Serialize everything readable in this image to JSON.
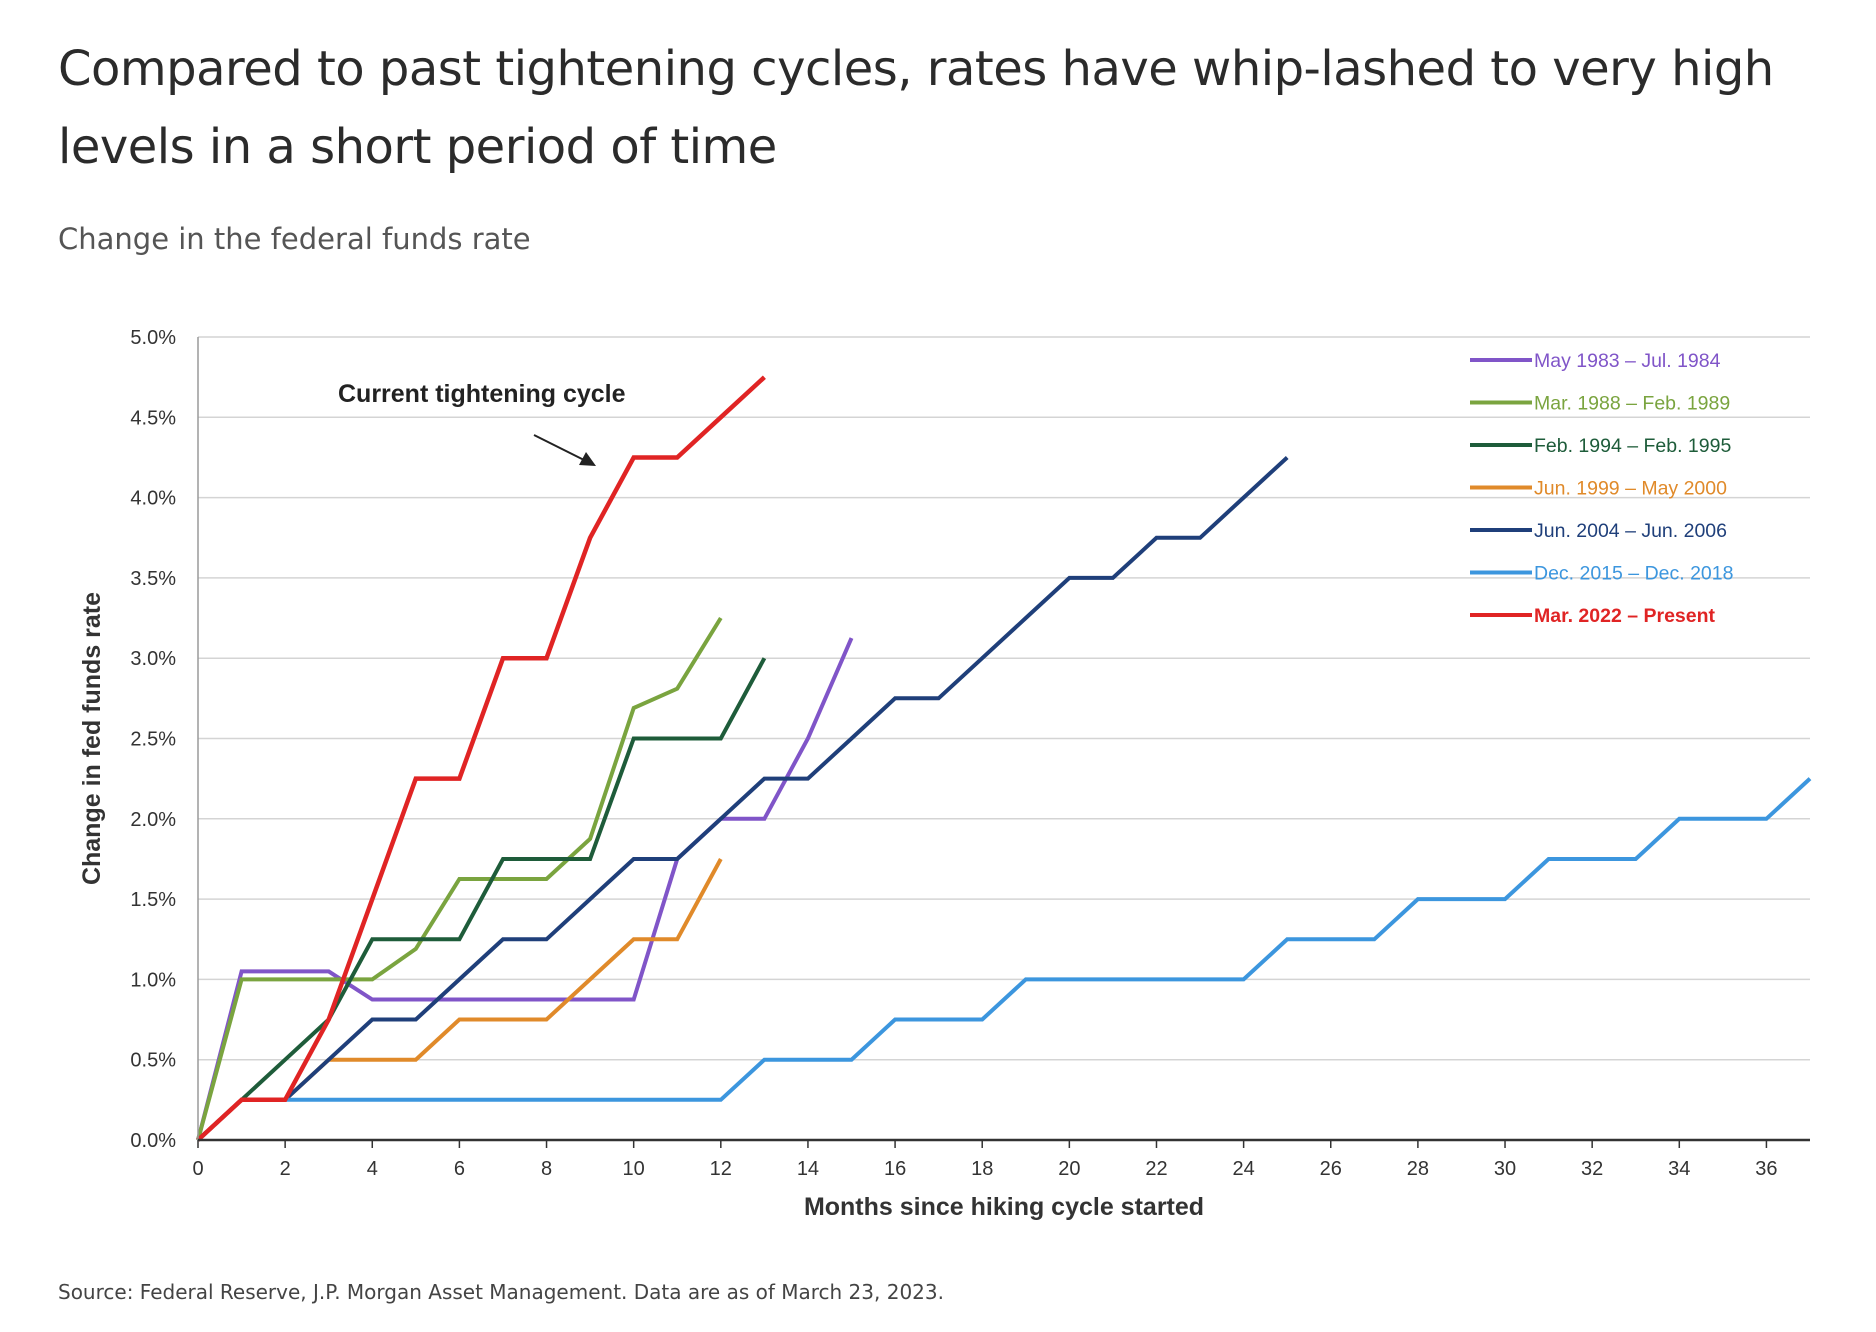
{
  "title": "Compared to past tightening cycles, rates have whip-lashed to very high levels in a short period of time",
  "subtitle": "Change in the federal funds rate",
  "source": "Source: Federal Reserve, J.P. Morgan Asset Management. Data are as of March 23, 2023.",
  "chart_data": {
    "type": "line",
    "xlabel": "Months since hiking cycle started",
    "ylabel": "Change in fed funds rate",
    "xlim": [
      0,
      37
    ],
    "ylim": [
      0,
      5.0
    ],
    "x_ticks": [
      "0",
      "2",
      "4",
      "6",
      "8",
      "10",
      "12",
      "14",
      "16",
      "18",
      "20",
      "22",
      "24",
      "26",
      "28",
      "30",
      "32",
      "34",
      "36"
    ],
    "y_ticks": [
      "0.0%",
      "0.5%",
      "1.0%",
      "1.5%",
      "2.0%",
      "2.5%",
      "3.0%",
      "3.5%",
      "4.0%",
      "4.5%",
      "5.0%"
    ],
    "grid": "horizontal",
    "legend_position": "top-right",
    "annotation": "Current tightening cycle",
    "series": [
      {
        "name": "May 1983 – Jul. 1984",
        "color": "#8055c8",
        "x": [
          0,
          1,
          2,
          3,
          4,
          5,
          6,
          7,
          8,
          9,
          10,
          11,
          12,
          13,
          14,
          15
        ],
        "y": [
          0,
          1.05,
          1.05,
          1.05,
          0.875,
          0.875,
          0.875,
          0.875,
          0.875,
          0.875,
          0.875,
          1.75,
          2.0,
          2.0,
          2.5,
          3.125
        ]
      },
      {
        "name": "Mar. 1988 – Feb. 1989",
        "color": "#7aa43f",
        "x": [
          0,
          1,
          2,
          3,
          4,
          5,
          6,
          7,
          8,
          9,
          10,
          11,
          12
        ],
        "y": [
          0,
          1.0,
          1.0,
          1.0,
          1.0,
          1.19,
          1.625,
          1.625,
          1.625,
          1.875,
          2.69,
          2.81,
          3.25
        ]
      },
      {
        "name": "Feb. 1994 – Feb. 1995",
        "color": "#1e5c3a",
        "x": [
          0,
          1,
          2,
          3,
          4,
          5,
          6,
          7,
          8,
          9,
          10,
          11,
          12,
          13
        ],
        "y": [
          0,
          0.25,
          0.5,
          0.75,
          1.25,
          1.25,
          1.25,
          1.75,
          1.75,
          1.75,
          2.5,
          2.5,
          2.5,
          3.0
        ]
      },
      {
        "name": "Jun. 1999 – May 2000",
        "color": "#e08a2a",
        "x": [
          0,
          1,
          2,
          3,
          4,
          5,
          6,
          7,
          8,
          9,
          10,
          11,
          12
        ],
        "y": [
          0,
          0.25,
          0.25,
          0.5,
          0.5,
          0.5,
          0.75,
          0.75,
          0.75,
          1.0,
          1.25,
          1.25,
          1.75
        ]
      },
      {
        "name": "Jun. 2004 – Jun. 2006",
        "color": "#1f3f7a",
        "x": [
          0,
          1,
          2,
          3,
          4,
          5,
          6,
          7,
          8,
          9,
          10,
          11,
          12,
          13,
          14,
          15,
          16,
          17,
          18,
          19,
          20,
          21,
          22,
          23,
          24,
          25
        ],
        "y": [
          0,
          0.25,
          0.25,
          0.5,
          0.75,
          0.75,
          1.0,
          1.25,
          1.25,
          1.5,
          1.75,
          1.75,
          2.0,
          2.25,
          2.25,
          2.5,
          2.75,
          2.75,
          3.0,
          3.25,
          3.5,
          3.5,
          3.75,
          3.75,
          4.0,
          4.25
        ]
      },
      {
        "name": "Dec. 2015 – Dec. 2018",
        "color": "#3c96de",
        "x": [
          0,
          1,
          2,
          3,
          4,
          5,
          6,
          7,
          8,
          9,
          10,
          11,
          12,
          13,
          14,
          15,
          16,
          17,
          18,
          19,
          20,
          21,
          22,
          23,
          24,
          25,
          26,
          27,
          28,
          29,
          30,
          31,
          32,
          33,
          34,
          35,
          36,
          37
        ],
        "y": [
          0,
          0.25,
          0.25,
          0.25,
          0.25,
          0.25,
          0.25,
          0.25,
          0.25,
          0.25,
          0.25,
          0.25,
          0.25,
          0.5,
          0.5,
          0.5,
          0.75,
          0.75,
          0.75,
          1.0,
          1.0,
          1.0,
          1.0,
          1.0,
          1.0,
          1.25,
          1.25,
          1.25,
          1.5,
          1.5,
          1.5,
          1.75,
          1.75,
          1.75,
          2.0,
          2.0,
          2.0,
          2.25
        ]
      },
      {
        "name": "Mar. 2022 – Present",
        "color": "#e02424",
        "bold": true,
        "x": [
          0,
          1,
          2,
          3,
          4,
          5,
          6,
          7,
          8,
          9,
          10,
          11,
          12,
          13
        ],
        "y": [
          0,
          0.25,
          0.25,
          0.75,
          1.5,
          2.25,
          2.25,
          3.0,
          3.0,
          3.75,
          4.25,
          4.25,
          4.5,
          4.75
        ]
      }
    ]
  }
}
